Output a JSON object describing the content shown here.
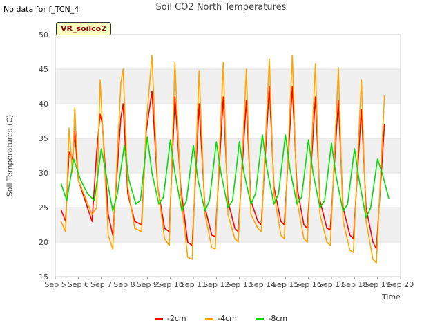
{
  "header": {
    "note": "No data for f_TCN_4",
    "title": "Soil CO2 North Temperatures",
    "badge": "VR_soilco2"
  },
  "chart_data": {
    "type": "line",
    "title": "Soil CO2 North Temperatures",
    "xlabel": "Time",
    "ylabel": "Soil Temperatures (C)",
    "xlim": [
      5,
      20
    ],
    "ylim": [
      15,
      50
    ],
    "x_ticks": [
      5,
      6,
      7,
      8,
      9,
      10,
      11,
      12,
      13,
      14,
      15,
      16,
      17,
      18,
      19,
      20
    ],
    "x_tick_labels": [
      "Sep 5",
      "Sep 6",
      "Sep 7",
      "Sep 8",
      "Sep 9",
      "Sep 10",
      "Sep 11",
      "Sep 12",
      "Sep 13",
      "Sep 14",
      "Sep 15",
      "Sep 16",
      "Sep 17",
      "Sep 18",
      "Sep 19",
      "Sep 20"
    ],
    "y_ticks": [
      15,
      20,
      25,
      30,
      35,
      40,
      45,
      50
    ],
    "grid": "horizontal alternating bands",
    "legend_position": "bottom-center",
    "series": [
      {
        "name": "-2cm",
        "color": "#ff0000",
        "x": [
          5.25,
          5.45,
          5.6,
          5.75,
          5.85,
          6.0,
          6.3,
          6.6,
          6.8,
          6.95,
          7.05,
          7.3,
          7.5,
          7.85,
          7.95,
          8.15,
          8.45,
          8.75,
          8.95,
          9.2,
          9.45,
          9.75,
          9.95,
          10.2,
          10.45,
          10.75,
          10.95,
          11.25,
          11.5,
          11.8,
          11.95,
          12.3,
          12.5,
          12.8,
          12.95,
          13.3,
          13.5,
          13.8,
          13.95,
          14.3,
          14.5,
          14.8,
          14.95,
          15.3,
          15.5,
          15.8,
          15.95,
          16.3,
          16.5,
          16.8,
          16.95,
          17.3,
          17.5,
          17.8,
          17.95,
          18.3,
          18.5,
          18.8,
          18.95,
          19.3
        ],
        "y": [
          24.7,
          23.0,
          33.0,
          32.0,
          36.0,
          29.0,
          26.0,
          23.0,
          33.0,
          38.5,
          37.0,
          24.0,
          21.0,
          38.0,
          40.0,
          27.0,
          23.0,
          22.5,
          36.0,
          41.8,
          28.0,
          22.0,
          21.5,
          41.0,
          28.0,
          20.0,
          19.5,
          40.0,
          25.0,
          21.0,
          20.8,
          41.0,
          26.0,
          22.0,
          21.5,
          40.5,
          26.0,
          23.0,
          22.5,
          42.5,
          28.0,
          23.0,
          22.5,
          42.5,
          28.0,
          22.5,
          22.0,
          41.0,
          26.0,
          22.0,
          21.8,
          40.5,
          25.0,
          21.0,
          20.5,
          39.2,
          25.0,
          20.0,
          19.0,
          37.0
        ]
      },
      {
        "name": "-4cm",
        "color": "#ffa500",
        "x": [
          5.25,
          5.45,
          5.6,
          5.75,
          5.85,
          6.0,
          6.3,
          6.6,
          6.8,
          6.95,
          7.05,
          7.3,
          7.5,
          7.85,
          7.95,
          8.15,
          8.45,
          8.75,
          8.95,
          9.2,
          9.45,
          9.75,
          9.95,
          10.2,
          10.45,
          10.75,
          10.95,
          11.25,
          11.5,
          11.8,
          11.95,
          12.3,
          12.5,
          12.8,
          12.95,
          13.3,
          13.5,
          13.8,
          13.95,
          14.3,
          14.5,
          14.8,
          14.95,
          15.3,
          15.5,
          15.8,
          15.95,
          16.3,
          16.5,
          16.8,
          16.95,
          17.3,
          17.5,
          17.8,
          17.95,
          18.3,
          18.5,
          18.8,
          18.95,
          19.3
        ],
        "y": [
          23.0,
          21.5,
          36.5,
          30.0,
          39.5,
          29.0,
          26.5,
          24.0,
          25.0,
          43.5,
          37.0,
          21.0,
          19.0,
          43.0,
          45.0,
          28.0,
          22.0,
          21.5,
          37.0,
          47.0,
          28.0,
          20.5,
          19.5,
          46.0,
          27.0,
          17.8,
          17.5,
          44.8,
          24.0,
          19.2,
          19.0,
          46.0,
          24.0,
          20.5,
          20.0,
          45.0,
          24.0,
          22.0,
          21.5,
          46.5,
          27.0,
          21.0,
          20.5,
          47.0,
          26.0,
          20.5,
          20.0,
          45.8,
          24.0,
          20.0,
          19.5,
          45.2,
          23.0,
          18.8,
          18.5,
          43.5,
          23.0,
          17.5,
          17.0,
          41.2
        ]
      },
      {
        "name": "-8cm",
        "color": "#00dd00",
        "x": [
          5.25,
          5.5,
          5.8,
          6.1,
          6.4,
          6.7,
          7.0,
          7.2,
          7.5,
          7.7,
          8.0,
          8.2,
          8.5,
          8.7,
          9.0,
          9.2,
          9.5,
          9.7,
          10.0,
          10.2,
          10.5,
          10.7,
          11.0,
          11.2,
          11.5,
          11.7,
          12.0,
          12.2,
          12.5,
          12.7,
          13.0,
          13.2,
          13.5,
          13.7,
          14.0,
          14.2,
          14.5,
          14.7,
          15.0,
          15.2,
          15.5,
          15.7,
          16.0,
          16.2,
          16.5,
          16.7,
          17.0,
          17.2,
          17.5,
          17.7,
          18.0,
          18.2,
          18.5,
          18.7,
          19.0,
          19.2,
          19.5
        ],
        "y": [
          28.5,
          26.0,
          32.0,
          29.0,
          27.0,
          26.0,
          33.5,
          30.0,
          24.5,
          27.0,
          34.0,
          29.0,
          25.5,
          26.0,
          35.2,
          30.0,
          25.5,
          26.5,
          34.8,
          30.0,
          24.5,
          26.0,
          34.0,
          29.0,
          24.5,
          26.0,
          34.5,
          30.0,
          25.0,
          26.0,
          34.5,
          30.0,
          25.5,
          27.0,
          35.5,
          30.5,
          25.5,
          27.0,
          35.5,
          30.5,
          25.5,
          26.5,
          34.8,
          30.0,
          25.0,
          26.0,
          34.3,
          29.5,
          24.5,
          25.5,
          33.5,
          29.0,
          23.5,
          25.0,
          32.0,
          30.0,
          26.2
        ]
      }
    ]
  }
}
